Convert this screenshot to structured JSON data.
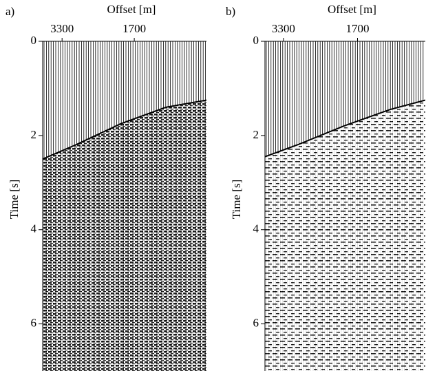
{
  "chart_data": [
    {
      "type": "wiggle",
      "label": "a)",
      "xlabel": "Offset [m]",
      "ylabel": "Time [s]",
      "xlim": [
        3730,
        100
      ],
      "xticks": [
        3300,
        1700
      ],
      "ylim": [
        0,
        7
      ],
      "yticks": [
        0,
        2,
        4,
        6
      ],
      "x": [
        3730,
        3000,
        2000,
        1000,
        100
      ],
      "values": [
        2.5,
        2.2,
        1.75,
        1.4,
        1.25
      ],
      "color": "#000000"
    },
    {
      "type": "wiggle",
      "label": "b)",
      "xlabel": "Offset [m]",
      "ylabel": "Time [s]",
      "xlim": [
        3700,
        235
      ],
      "xticks": [
        3300,
        1700
      ],
      "ylim": [
        0,
        7
      ],
      "yticks": [
        0,
        2,
        4,
        6
      ],
      "x": [
        3700,
        3000,
        2000,
        1000,
        235
      ],
      "values": [
        2.45,
        2.2,
        1.8,
        1.45,
        1.25
      ],
      "color": "#000000"
    }
  ]
}
